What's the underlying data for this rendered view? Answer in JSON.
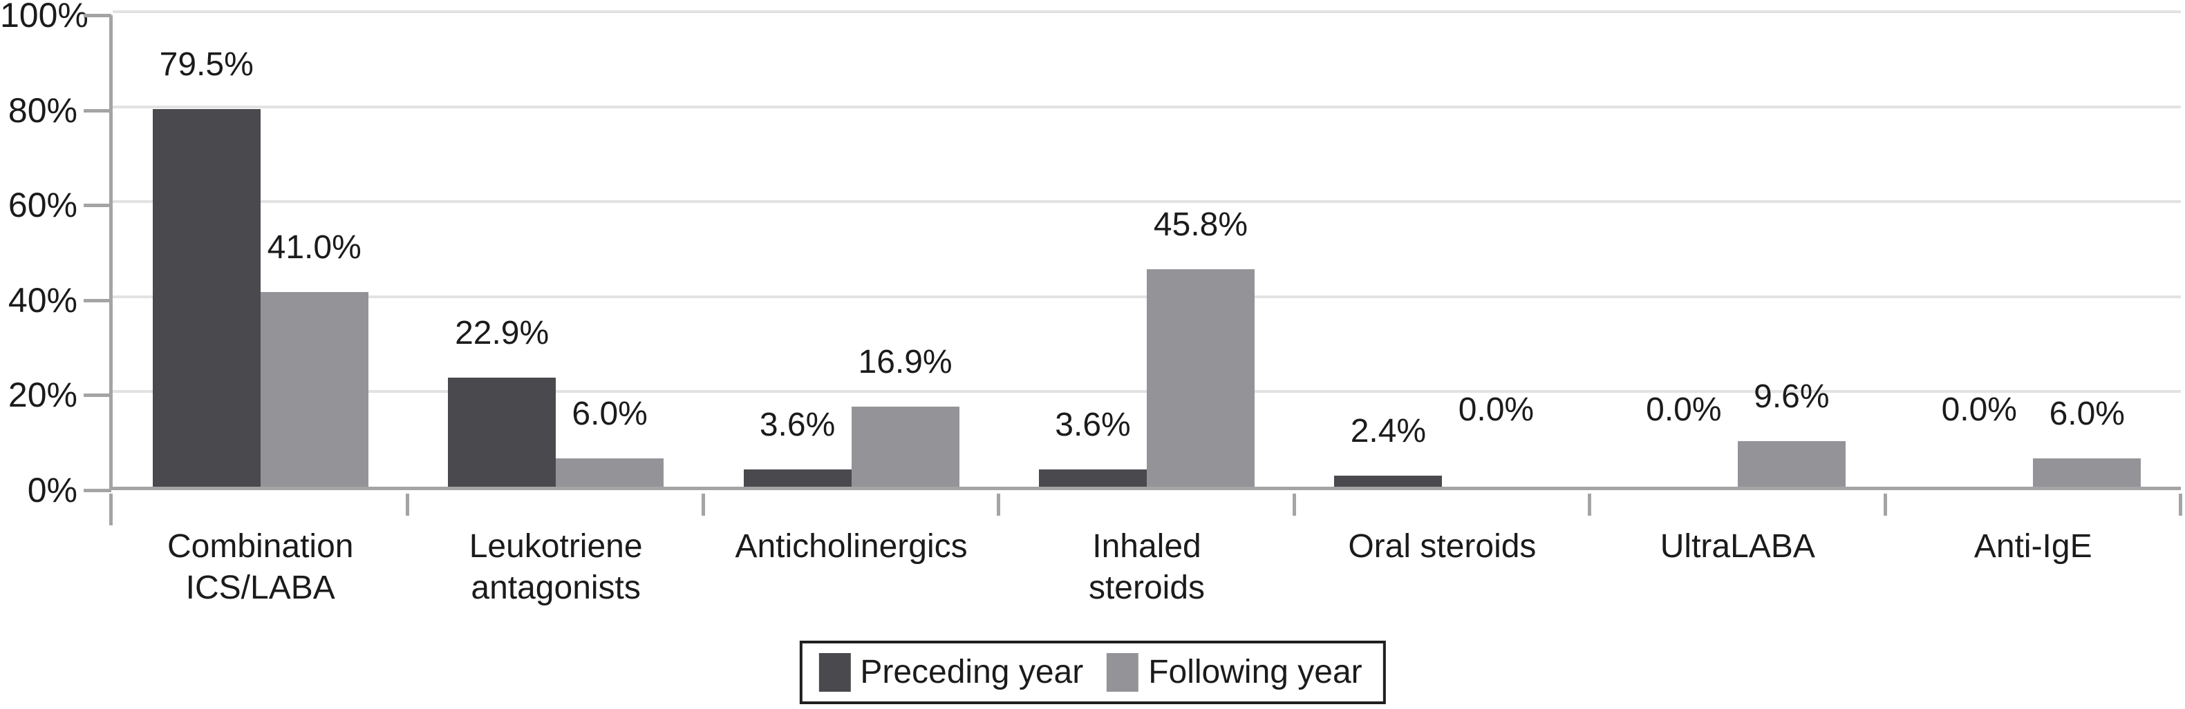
{
  "chart_data": {
    "type": "bar",
    "title": "",
    "xlabel": "",
    "ylabel": "",
    "categories": [
      "Combination\nICS/LABA",
      "Leukotriene\nantagonists",
      "Anticholinergics",
      "Inhaled\nsteroids",
      "Oral steroids",
      "UltraLABA",
      "Anti-IgE"
    ],
    "series": [
      {
        "name": "Preceding year",
        "color": "#4a4a4e",
        "values": [
          79.5,
          22.9,
          3.6,
          3.6,
          2.4,
          0.0,
          0.0
        ],
        "value_labels": [
          "79.5%",
          "22.9%",
          "3.6%",
          "3.6%",
          "2.4%",
          "0.0%",
          "0.0%"
        ]
      },
      {
        "name": "Following year",
        "color": "#949498",
        "values": [
          41.0,
          6.0,
          16.9,
          45.8,
          0.0,
          9.6,
          6.0
        ],
        "value_labels": [
          "41.0%",
          "6.0%",
          "16.9%",
          "45.8%",
          "0.0%",
          "9.6%",
          "6.0%"
        ]
      }
    ],
    "ylim": [
      0,
      100
    ],
    "ytick_values": [
      0,
      20,
      40,
      60,
      80,
      100
    ],
    "ytick_labels": [
      "0%",
      "20%",
      "40%",
      "60%",
      "80%",
      "100%"
    ],
    "grid": true,
    "legend_position": "bottom-center"
  },
  "colors": {
    "axis": "#a4a4a4",
    "gridline": "#e2e2e2",
    "text": "#1b1b1b",
    "legend_border": "#1f1f1f",
    "background": "#ffffff",
    "series_dark": "#4a4a4e",
    "series_light": "#949498"
  }
}
